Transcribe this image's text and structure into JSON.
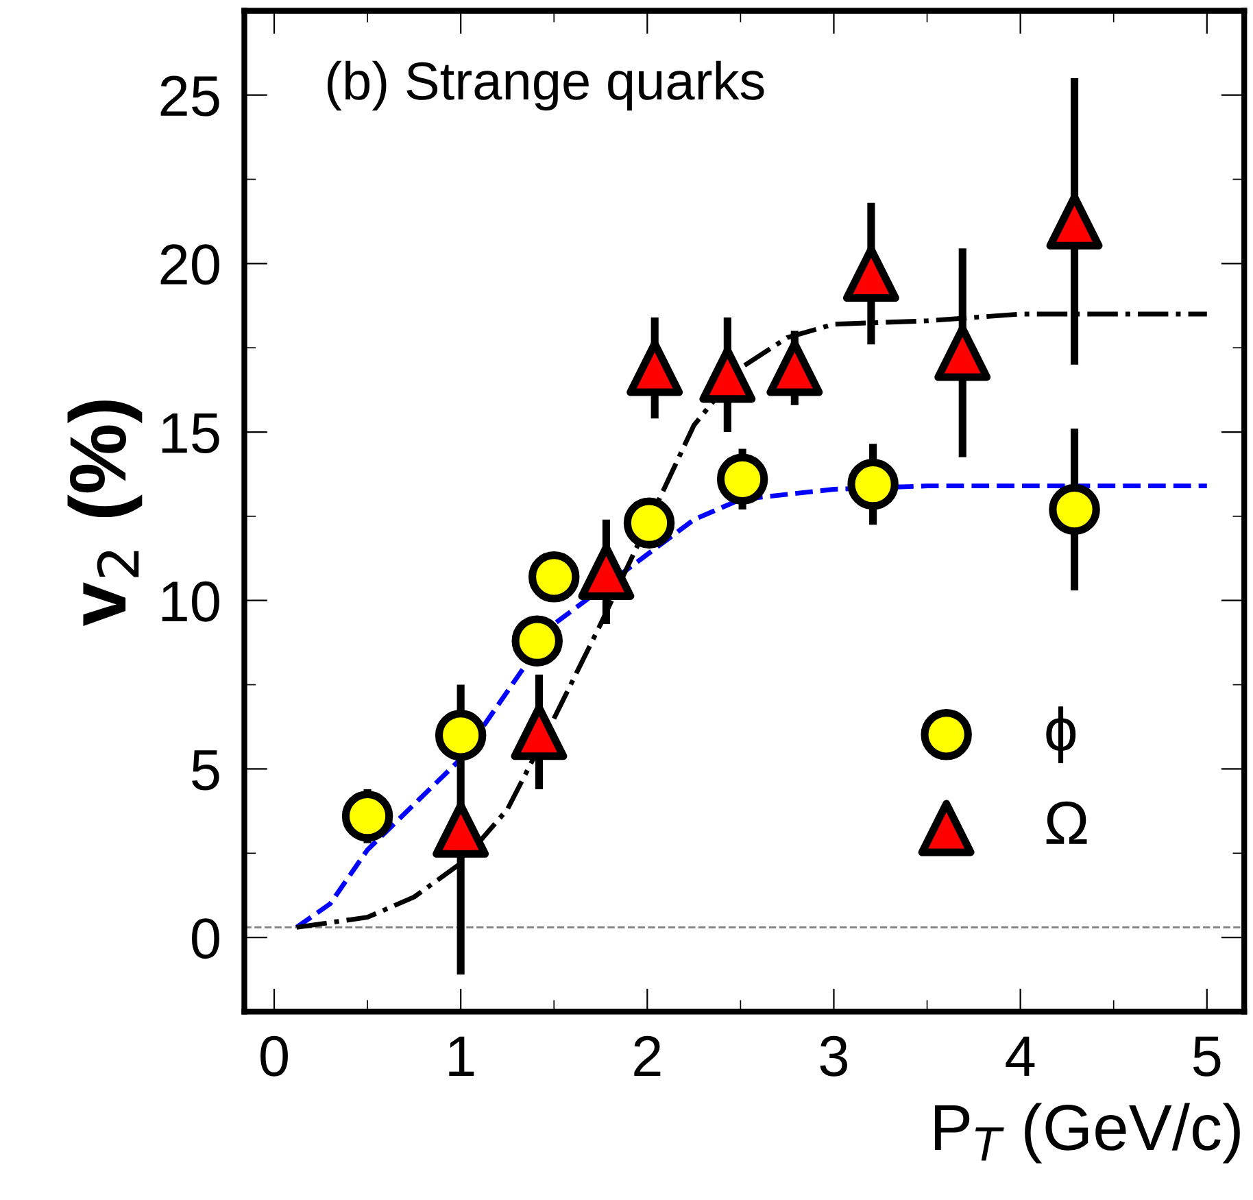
{
  "chart_data": {
    "type": "scatter",
    "title": "(b) Strange quarks",
    "xlabel": "P$_{T}$ (GeV/c)",
    "ylabel": "v$_{2}$ (%)",
    "xlim": [
      -0.16,
      5.2
    ],
    "ylim": [
      -2.2,
      27.5
    ],
    "xticks": [
      0,
      1,
      2,
      3,
      4,
      5
    ],
    "yticks": [
      0,
      5,
      10,
      15,
      20,
      25
    ],
    "grid": false,
    "legend": "bottom right",
    "series": [
      {
        "name": "ϕ",
        "marker": "circle",
        "color": "#ffff00",
        "x": [
          0.5,
          1.0,
          1.41,
          1.5,
          2.01,
          2.51,
          3.21,
          4.29
        ],
        "values": [
          3.6,
          6.0,
          8.8,
          10.7,
          12.3,
          13.6,
          13.45,
          12.7
        ],
        "errors": [
          0.8,
          null,
          null,
          null,
          null,
          0.9,
          1.2,
          2.4
        ]
      },
      {
        "name": "Ω",
        "marker": "triangle",
        "color": "#ff0000",
        "x": [
          1.0,
          1.42,
          1.78,
          2.04,
          2.43,
          2.79,
          3.2,
          3.69,
          4.29
        ],
        "values": [
          3.2,
          6.1,
          10.85,
          16.9,
          16.7,
          16.9,
          19.7,
          17.35,
          21.25
        ],
        "errors": [
          4.3,
          1.7,
          1.55,
          1.5,
          1.7,
          1.1,
          2.1,
          3.1,
          4.25
        ]
      },
      {
        "type": "line",
        "color": "#0000ff",
        "line_style": "dashed",
        "marker": "none",
        "x": [
          0.12,
          0.3,
          0.5,
          1.0,
          1.25,
          1.5,
          2.25,
          2.5,
          3.0,
          3.5,
          5.0
        ],
        "values": [
          0.3,
          1.0,
          2.6,
          5.3,
          7.3,
          9.3,
          12.4,
          13.0,
          13.3,
          13.4,
          13.4
        ]
      },
      {
        "type": "line",
        "color": "#000000",
        "line_style": "dashdot",
        "marker": "none",
        "x": [
          0.12,
          0.5,
          0.75,
          1.0,
          1.25,
          1.5,
          1.75,
          2.25,
          2.5,
          2.75,
          3.0,
          3.5,
          4.0,
          5.0
        ],
        "values": [
          0.3,
          0.6,
          1.2,
          2.2,
          3.8,
          6.5,
          9.3,
          15.2,
          16.9,
          17.8,
          18.2,
          18.3,
          18.5,
          18.5
        ]
      }
    ],
    "ref_lines": [
      {
        "axis": "y",
        "value": 0.3,
        "color": "#808080",
        "line_style": "dashed"
      }
    ]
  }
}
